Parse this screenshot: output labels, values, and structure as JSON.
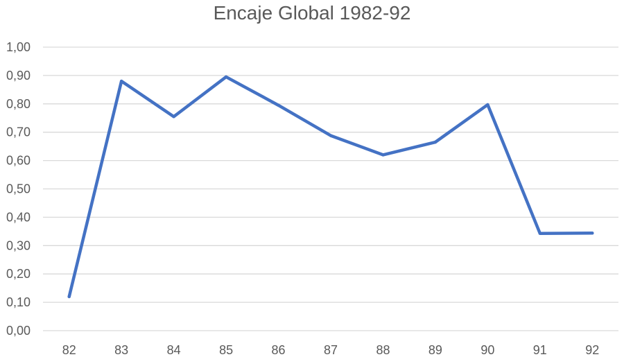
{
  "chart_data": {
    "type": "line",
    "title": "Encaje Global 1982-92",
    "xlabel": "",
    "ylabel": "",
    "categories": [
      "82",
      "83",
      "84",
      "85",
      "86",
      "87",
      "88",
      "89",
      "90",
      "91",
      "92"
    ],
    "series": [
      {
        "values": [
          0.12,
          0.88,
          0.755,
          0.895,
          0.795,
          0.688,
          0.62,
          0.665,
          0.797,
          0.343,
          0.344
        ]
      }
    ],
    "ylim": [
      0,
      1
    ],
    "yticks": [
      0,
      0.1,
      0.2,
      0.3,
      0.4,
      0.5,
      0.6,
      0.7,
      0.8,
      0.9,
      1.0
    ],
    "ytick_labels": [
      "0,00",
      "0,10",
      "0,20",
      "0,30",
      "0,40",
      "0,50",
      "0,60",
      "0,70",
      "0,80",
      "0,90",
      "1,00"
    ],
    "grid": true,
    "legend": "none",
    "colors": {
      "series": "#4472C4",
      "grid": "#D9D9D9",
      "text": "#595959"
    }
  }
}
